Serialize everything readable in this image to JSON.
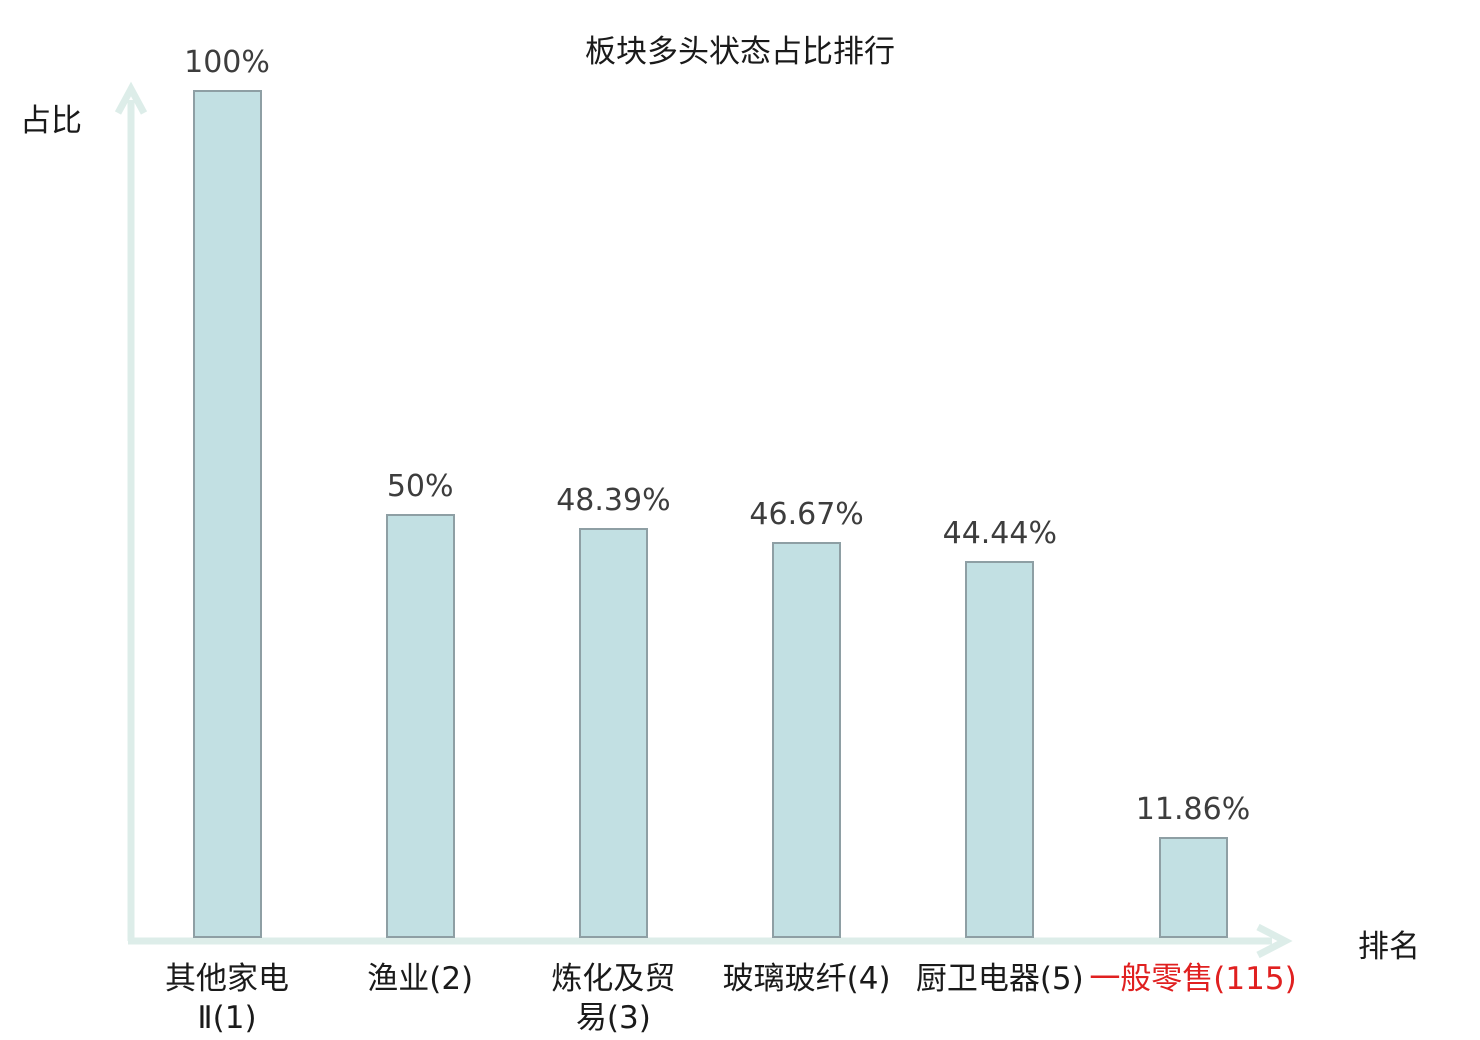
{
  "chart_data": {
    "type": "bar",
    "title": "板块多头状态占比排行",
    "ylabel": "占比",
    "xlabel": "排名",
    "categories": [
      "其他家电Ⅱ(1)",
      "渔业(2)",
      "炼化及贸易(3)",
      "玻璃玻纤(4)",
      "厨卫电器(5)",
      "一般零售(115)"
    ],
    "category_display_lines": [
      [
        "其他家电",
        "Ⅱ(1)"
      ],
      [
        "渔业(2)"
      ],
      [
        "炼化及贸",
        "易(3)"
      ],
      [
        "玻璃玻纤(4)"
      ],
      [
        "厨卫电器(5)"
      ],
      [
        "一般零售(115)"
      ]
    ],
    "values": [
      100,
      50,
      48.39,
      46.67,
      44.44,
      11.86
    ],
    "value_labels": [
      "100%",
      "50%",
      "48.39%",
      "46.67%",
      "44.44%",
      "11.86%"
    ],
    "highlight_index": 5,
    "ylim": [
      0,
      100
    ],
    "grid": false,
    "legend": null,
    "colors": {
      "bar_fill": "#c2e0e3",
      "bar_border": "#8e9fa4",
      "axis": "#ddede9",
      "value_text": "#3d3d3d",
      "category_text": "#1a1a1a",
      "highlight_text": "#e02020"
    }
  }
}
